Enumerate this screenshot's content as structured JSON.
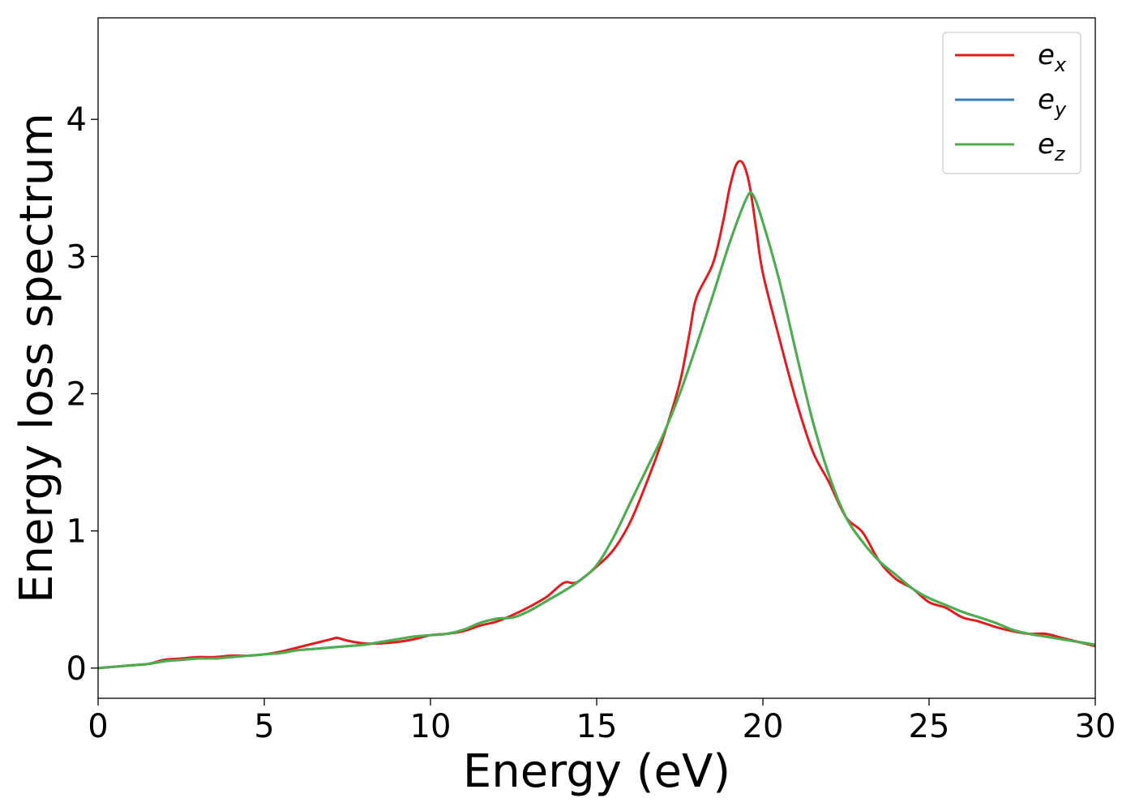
{
  "chart_data": {
    "type": "line",
    "title": "",
    "xlabel": "Energy (eV)",
    "ylabel": "Energy loss spectrum",
    "xlim": [
      0,
      30
    ],
    "ylim": [
      -0.22,
      4.74
    ],
    "xticks": [
      0,
      5,
      10,
      15,
      20,
      25,
      30
    ],
    "yticks": [
      0,
      1,
      2,
      3,
      4
    ],
    "grid": false,
    "legend_position": "top-right",
    "series": [
      {
        "name": "e_x",
        "legend_base": "e",
        "legend_sub": "x",
        "color": "#e41a1c",
        "x": [
          0,
          1,
          1.5,
          2,
          2.5,
          3,
          3.5,
          4,
          4.5,
          5,
          5.5,
          6,
          6.5,
          7,
          7.2,
          7.5,
          8,
          8.5,
          9,
          9.5,
          10,
          10.5,
          11,
          11.5,
          12,
          12.5,
          13,
          13.5,
          14,
          14.3,
          14.5,
          15,
          15.5,
          16,
          16.5,
          17,
          17.5,
          17.8,
          18,
          18.5,
          18.8,
          19,
          19.2,
          19.4,
          19.6,
          19.8,
          20,
          20.5,
          21,
          21.5,
          22,
          22.5,
          23,
          23.5,
          24,
          24.5,
          25,
          25.5,
          26,
          26.5,
          27,
          27.5,
          28,
          28.5,
          29,
          29.5,
          30
        ],
        "y": [
          0,
          0.02,
          0.03,
          0.06,
          0.07,
          0.08,
          0.08,
          0.09,
          0.09,
          0.1,
          0.12,
          0.15,
          0.18,
          0.21,
          0.22,
          0.2,
          0.18,
          0.18,
          0.19,
          0.21,
          0.24,
          0.25,
          0.27,
          0.31,
          0.34,
          0.39,
          0.45,
          0.52,
          0.62,
          0.62,
          0.64,
          0.74,
          0.86,
          1.06,
          1.35,
          1.68,
          2.08,
          2.45,
          2.7,
          2.95,
          3.25,
          3.5,
          3.67,
          3.68,
          3.52,
          3.2,
          2.88,
          2.4,
          1.95,
          1.58,
          1.35,
          1.1,
          0.99,
          0.78,
          0.65,
          0.58,
          0.48,
          0.44,
          0.37,
          0.34,
          0.3,
          0.27,
          0.25,
          0.25,
          0.22,
          0.19,
          0.16
        ]
      },
      {
        "name": "e_y",
        "legend_base": "e",
        "legend_sub": "y",
        "color": "#377eb8",
        "x": [
          0,
          1,
          1.5,
          2,
          2.5,
          3,
          3.5,
          4,
          4.5,
          5,
          5.5,
          6,
          6.5,
          7,
          7.5,
          8,
          8.5,
          9,
          9.5,
          10,
          10.5,
          11,
          11.5,
          12,
          12.5,
          13,
          13.5,
          14,
          14.5,
          15,
          15.5,
          16,
          16.5,
          17,
          17.5,
          18,
          18.5,
          19,
          19.5,
          19.7,
          20,
          20.5,
          21,
          21.5,
          22,
          22.5,
          23,
          23.5,
          24,
          24.5,
          25,
          25.5,
          26,
          26.5,
          27,
          27.5,
          28,
          28.5,
          29,
          29.5,
          30
        ],
        "y": [
          0,
          0.02,
          0.03,
          0.05,
          0.06,
          0.07,
          0.07,
          0.08,
          0.09,
          0.1,
          0.11,
          0.13,
          0.14,
          0.15,
          0.16,
          0.17,
          0.19,
          0.21,
          0.23,
          0.24,
          0.25,
          0.28,
          0.33,
          0.36,
          0.37,
          0.42,
          0.49,
          0.56,
          0.64,
          0.75,
          0.95,
          1.2,
          1.45,
          1.7,
          2.0,
          2.35,
          2.72,
          3.1,
          3.42,
          3.45,
          3.25,
          2.82,
          2.3,
          1.8,
          1.4,
          1.1,
          0.92,
          0.78,
          0.68,
          0.58,
          0.51,
          0.46,
          0.41,
          0.37,
          0.33,
          0.28,
          0.25,
          0.23,
          0.21,
          0.19,
          0.17
        ]
      },
      {
        "name": "e_z",
        "legend_base": "e",
        "legend_sub": "z",
        "color": "#4daf4a",
        "x": [
          0,
          1,
          1.5,
          2,
          2.5,
          3,
          3.5,
          4,
          4.5,
          5,
          5.5,
          6,
          6.5,
          7,
          7.5,
          8,
          8.5,
          9,
          9.5,
          10,
          10.5,
          11,
          11.5,
          12,
          12.5,
          13,
          13.5,
          14,
          14.5,
          15,
          15.5,
          16,
          16.5,
          17,
          17.5,
          18,
          18.5,
          19,
          19.5,
          19.7,
          20,
          20.5,
          21,
          21.5,
          22,
          22.5,
          23,
          23.5,
          24,
          24.5,
          25,
          25.5,
          26,
          26.5,
          27,
          27.5,
          28,
          28.5,
          29,
          29.5,
          30
        ],
        "y": [
          0,
          0.02,
          0.03,
          0.05,
          0.06,
          0.07,
          0.07,
          0.08,
          0.09,
          0.1,
          0.11,
          0.13,
          0.14,
          0.15,
          0.16,
          0.17,
          0.19,
          0.21,
          0.23,
          0.24,
          0.25,
          0.28,
          0.33,
          0.36,
          0.37,
          0.42,
          0.49,
          0.56,
          0.64,
          0.75,
          0.95,
          1.2,
          1.45,
          1.7,
          2.0,
          2.35,
          2.72,
          3.1,
          3.42,
          3.45,
          3.25,
          2.82,
          2.3,
          1.8,
          1.4,
          1.1,
          0.92,
          0.78,
          0.68,
          0.58,
          0.51,
          0.46,
          0.41,
          0.37,
          0.33,
          0.28,
          0.25,
          0.23,
          0.21,
          0.19,
          0.17
        ]
      }
    ]
  }
}
